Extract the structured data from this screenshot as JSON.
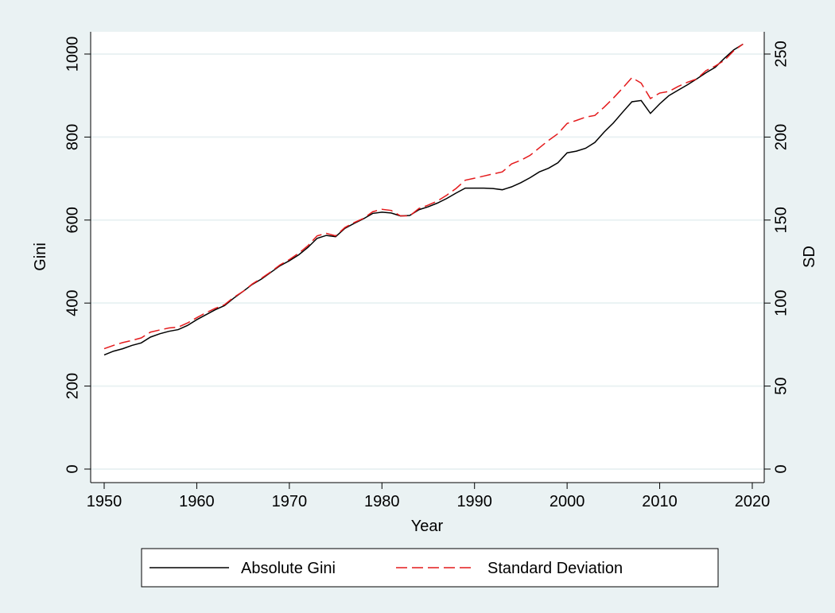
{
  "chart_data": {
    "type": "line",
    "x_label": "Year",
    "y_label": "Gini",
    "y2_label": "SD",
    "x": [
      1950,
      1951,
      1952,
      1953,
      1954,
      1955,
      1956,
      1957,
      1958,
      1959,
      1960,
      1961,
      1962,
      1963,
      1964,
      1965,
      1966,
      1967,
      1968,
      1969,
      1970,
      1971,
      1972,
      1973,
      1974,
      1975,
      1976,
      1977,
      1978,
      1979,
      1980,
      1981,
      1982,
      1983,
      1984,
      1985,
      1986,
      1987,
      1988,
      1989,
      1990,
      1991,
      1992,
      1993,
      1994,
      1995,
      1996,
      1997,
      1998,
      1999,
      2000,
      2001,
      2002,
      2003,
      2004,
      2005,
      2006,
      2007,
      2008,
      2009,
      2010,
      2011,
      2012,
      2013,
      2014,
      2015,
      2016,
      2017,
      2018,
      2019
    ],
    "series": [
      {
        "name": "Absolute Gini",
        "color": "#000000",
        "dash": false,
        "values": [
          275,
          284,
          290,
          298,
          304,
          318,
          326,
          332,
          336,
          346,
          360,
          372,
          384,
          394,
          412,
          428,
          445,
          458,
          474,
          490,
          502,
          516,
          534,
          556,
          563,
          560,
          580,
          592,
          603,
          616,
          619,
          617,
          610,
          611,
          625,
          632,
          641,
          652,
          665,
          677,
          677,
          677,
          676,
          673,
          680,
          690,
          702,
          716,
          725,
          738,
          762,
          766,
          773,
          787,
          812,
          834,
          860,
          885,
          888,
          857,
          880,
          900,
          913,
          926,
          940,
          955,
          968,
          990,
          1010,
          1024
        ]
      },
      {
        "name": "Standard Deviation",
        "color": "#e41a1c",
        "dash": true,
        "axis": "y2",
        "values": [
          72.5,
          74.5,
          76.2,
          77.5,
          79,
          82.5,
          83.8,
          85,
          85.5,
          88,
          91.2,
          94.2,
          96.8,
          99,
          103.5,
          107,
          111.5,
          115,
          118.8,
          123,
          126.2,
          130,
          134.5,
          140.5,
          142,
          140.5,
          145.5,
          148.5,
          151,
          155,
          156.5,
          155.8,
          152.5,
          152.5,
          157,
          159,
          161.5,
          165,
          169,
          174,
          175.2,
          176.5,
          177.8,
          179,
          183.8,
          186,
          189,
          193.5,
          198,
          202,
          208.2,
          210,
          212,
          213,
          218,
          223.5,
          229.5,
          235.8,
          232.5,
          223.2,
          226.5,
          227.5,
          230.5,
          233,
          235,
          240,
          242.8,
          246.2,
          252,
          256
        ]
      }
    ],
    "xlim": [
      1948.54,
      2021.29
    ],
    "xticks": [
      1950,
      1960,
      1970,
      1980,
      1990,
      2000,
      2010,
      2020
    ],
    "ylim": [
      -32.6,
      1053.6
    ],
    "yticks": [
      0,
      200,
      400,
      600,
      800,
      1000
    ],
    "y2lim": [
      -8.15,
      263.4
    ],
    "y2ticks": [
      0,
      50,
      100,
      150,
      200,
      250
    ],
    "grid": true,
    "legend": "bottom"
  }
}
